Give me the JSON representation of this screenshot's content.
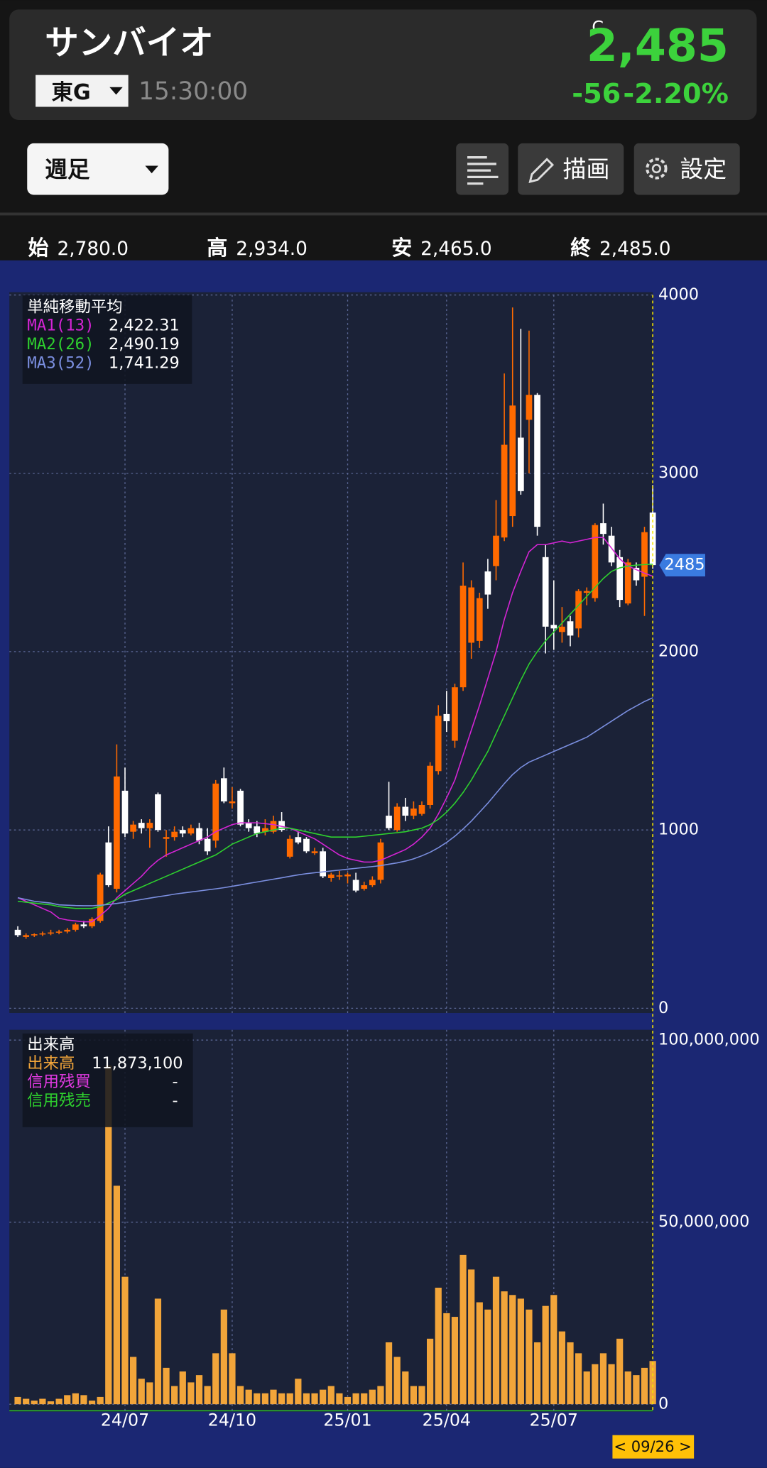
{
  "header": {
    "name": "サンバイオ",
    "market": "東G",
    "time": "15:30:00",
    "price_flag": "C",
    "price": "2,485",
    "change": "-56",
    "change_pct": "-2.20%"
  },
  "toolbar": {
    "period": "週足",
    "draw": "描画",
    "settings": "設定"
  },
  "ohlc": [
    {
      "label": "始",
      "value": "2,780.0"
    },
    {
      "label": "高",
      "value": "2,934.0"
    },
    {
      "label": "安",
      "value": "2,465.0"
    },
    {
      "label": "終",
      "value": "2,485.0"
    }
  ],
  "chart_data": [
    {
      "type": "candlestick",
      "legend_title": "単純移動平均",
      "up_color": "#ff6a00",
      "down_color": "#ffffff",
      "open": [
        440,
        400,
        410,
        415,
        420,
        425,
        430,
        440,
        470,
        460,
        490,
        930,
        670,
        1220,
        990,
        1040,
        1010,
        1200,
        950,
        960,
        1000,
        980,
        1010,
        950,
        940,
        1290,
        1150,
        1220,
        1040,
        1020,
        990,
        990,
        1050,
        850,
        960,
        950,
        870,
        880,
        730,
        740,
        740,
        720,
        670,
        690,
        720,
        1080,
        1000,
        1130,
        1080,
        1090,
        1140,
        1330,
        1650,
        1500,
        1800,
        2050,
        2060,
        2450,
        2480,
        2640,
        2760,
        3200,
        3300,
        3440,
        2530,
        2150,
        2110,
        2170,
        2130,
        2330,
        2300,
        2720,
        2650,
        2530,
        2270,
        2470,
        2420,
        2780
      ],
      "high": [
        460,
        420,
        420,
        430,
        440,
        440,
        450,
        480,
        490,
        510,
        760,
        1020,
        1480,
        1350,
        1050,
        1060,
        1060,
        1210,
        1000,
        1020,
        1020,
        1030,
        1040,
        1010,
        1280,
        1350,
        1240,
        1230,
        1060,
        1050,
        1060,
        1080,
        1100,
        970,
        990,
        960,
        900,
        900,
        760,
        770,
        760,
        760,
        710,
        740,
        950,
        1270,
        1150,
        1180,
        1160,
        1160,
        1380,
        1700,
        1780,
        1820,
        2500,
        2400,
        2330,
        2520,
        2850,
        3560,
        3930,
        3810,
        3800,
        3450,
        2600,
        2400,
        2250,
        2200,
        2350,
        2360,
        2720,
        2830,
        2700,
        2570,
        2520,
        2500,
        2700,
        2934
      ],
      "low": [
        400,
        390,
        400,
        405,
        410,
        415,
        420,
        430,
        450,
        450,
        480,
        680,
        650,
        960,
        950,
        980,
        900,
        990,
        850,
        940,
        960,
        970,
        920,
        860,
        900,
        1150,
        1120,
        1020,
        990,
        960,
        970,
        980,
        990,
        840,
        920,
        870,
        860,
        730,
        710,
        720,
        700,
        650,
        660,
        680,
        700,
        1000,
        990,
        1050,
        1060,
        1080,
        1120,
        1310,
        1550,
        1460,
        1780,
        1960,
        2020,
        2240,
        2400,
        2620,
        2700,
        2880,
        3000,
        2650,
        1990,
        2010,
        2050,
        2030,
        2080,
        2260,
        2280,
        2600,
        2480,
        2250,
        2260,
        2370,
        2200,
        2465
      ],
      "close": [
        410,
        410,
        415,
        420,
        425,
        430,
        440,
        470,
        460,
        500,
        750,
        690,
        1300,
        980,
        1030,
        1010,
        1040,
        1000,
        960,
        990,
        980,
        1010,
        940,
        880,
        1260,
        1160,
        1160,
        1030,
        1010,
        980,
        1010,
        1050,
        1000,
        950,
        930,
        880,
        880,
        740,
        750,
        745,
        750,
        660,
        690,
        720,
        930,
        1010,
        1130,
        1080,
        1120,
        1140,
        1360,
        1640,
        1610,
        1800,
        2370,
        2360,
        2300,
        2320,
        2650,
        3160,
        3380,
        2900,
        3440,
        2700,
        2140,
        2130,
        2140,
        2090,
        2340,
        2340,
        2710,
        2660,
        2500,
        2290,
        2500,
        2400,
        2670,
        2485
      ],
      "series": [
        {
          "name": "MA1(13)",
          "color": "#d524d5",
          "last_label": "2,422.31",
          "values": [
            620,
            600,
            580,
            560,
            540,
            505,
            495,
            490,
            485,
            485,
            520,
            560,
            620,
            660,
            700,
            740,
            790,
            830,
            860,
            880,
            900,
            920,
            940,
            960,
            990,
            1010,
            1030,
            1040,
            1040,
            1040,
            1035,
            1030,
            1020,
            1010,
            990,
            970,
            950,
            920,
            890,
            860,
            840,
            830,
            820,
            820,
            830,
            850,
            870,
            890,
            920,
            960,
            1010,
            1090,
            1180,
            1280,
            1420,
            1560,
            1700,
            1850,
            2000,
            2180,
            2330,
            2450,
            2560,
            2600,
            2600,
            2610,
            2620,
            2610,
            2620,
            2630,
            2640,
            2640,
            2580,
            2520,
            2480,
            2460,
            2440,
            2422.31
          ]
        },
        {
          "name": "MA2(26)",
          "color": "#2ed12e",
          "last_label": "2,490.19",
          "values": [
            600,
            595,
            590,
            585,
            580,
            570,
            565,
            560,
            560,
            560,
            570,
            590,
            610,
            640,
            660,
            680,
            700,
            720,
            740,
            760,
            780,
            800,
            820,
            840,
            860,
            890,
            920,
            940,
            960,
            980,
            990,
            1000,
            1010,
            1010,
            1000,
            990,
            980,
            970,
            960,
            960,
            960,
            960,
            965,
            970,
            975,
            980,
            985,
            990,
            1000,
            1010,
            1030,
            1060,
            1100,
            1150,
            1210,
            1280,
            1360,
            1440,
            1540,
            1640,
            1740,
            1840,
            1930,
            2000,
            2060,
            2110,
            2160,
            2210,
            2260,
            2310,
            2360,
            2410,
            2450,
            2470,
            2480,
            2485,
            2488,
            2490.19
          ]
        },
        {
          "name": "MA3(52)",
          "color": "#7b8fe0",
          "last_label": "1,741.29",
          "values": [
            620,
            610,
            600,
            595,
            590,
            580,
            578,
            576,
            575,
            575,
            578,
            582,
            588,
            595,
            602,
            610,
            618,
            625,
            632,
            640,
            646,
            652,
            658,
            664,
            670,
            676,
            684,
            692,
            700,
            708,
            716,
            724,
            732,
            740,
            748,
            755,
            760,
            765,
            770,
            775,
            780,
            785,
            790,
            795,
            800,
            808,
            815,
            825,
            838,
            855,
            875,
            900,
            930,
            965,
            1005,
            1050,
            1100,
            1150,
            1205,
            1260,
            1310,
            1350,
            1380,
            1400,
            1420,
            1440,
            1460,
            1480,
            1500,
            1520,
            1550,
            1580,
            1610,
            1640,
            1670,
            1695,
            1720,
            1741.29
          ]
        }
      ],
      "ylim": [
        0,
        4000
      ],
      "yticks": [
        0,
        1000,
        2000,
        3000,
        4000
      ],
      "xticks": [
        {
          "value": 13,
          "label": "24/07"
        },
        {
          "value": 26,
          "label": "24/10"
        },
        {
          "value": 40,
          "label": "25/01"
        },
        {
          "value": 52,
          "label": "25/04"
        },
        {
          "value": 65,
          "label": "25/07"
        }
      ],
      "last_price": 2485,
      "cursor_date": "< 09/26 >",
      "grid": true
    },
    {
      "type": "bar",
      "legend_title": "出来高",
      "series": [
        {
          "name": "出来高",
          "color": "#f2a53a",
          "last_label": "11,873,100",
          "values": [
            2000000,
            1500000,
            1000000,
            1500000,
            800000,
            1500000,
            2500000,
            3000000,
            2500000,
            1000000,
            2000000,
            93000000,
            60000000,
            35000000,
            13000000,
            7000000,
            6000000,
            29000000,
            10000000,
            5000000,
            9000000,
            6000000,
            8000000,
            5000000,
            14000000,
            26000000,
            14000000,
            5000000,
            4000000,
            3000000,
            3000000,
            4000000,
            3000000,
            3000000,
            7000000,
            3000000,
            3000000,
            4000000,
            5000000,
            3000000,
            2000000,
            3000000,
            3000000,
            4000000,
            5000000,
            17000000,
            13000000,
            9000000,
            5000000,
            5000000,
            18000000,
            32000000,
            25000000,
            24000000,
            41000000,
            37000000,
            28000000,
            26000000,
            35000000,
            31000000,
            30000000,
            29000000,
            26000000,
            17000000,
            27000000,
            30000000,
            20000000,
            17000000,
            14000000,
            9000000,
            11000000,
            14000000,
            11000000,
            18000000,
            9000000,
            8000000,
            10000000,
            11873100
          ]
        },
        {
          "name": "信用残買",
          "color": "#e23ae2",
          "last_label": "-"
        },
        {
          "name": "信用残売",
          "color": "#2ed12e",
          "last_label": "-"
        }
      ],
      "ylim": [
        0,
        100000000
      ],
      "yticks": [
        0,
        {
          "value": 50000000,
          "label": "50,000,000"
        },
        {
          "value": 100000000,
          "label": "100,000,000"
        }
      ],
      "grid": true
    }
  ]
}
